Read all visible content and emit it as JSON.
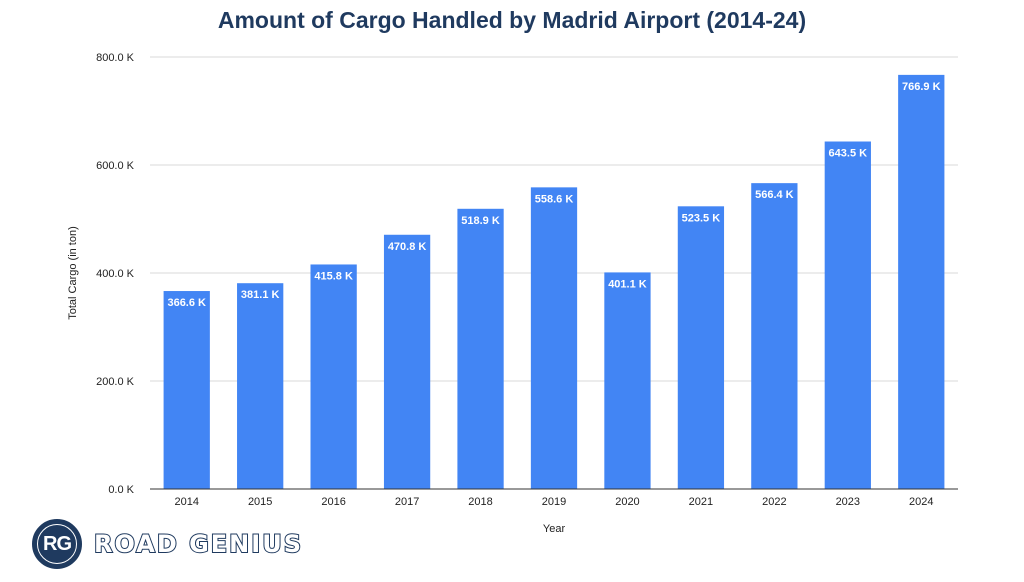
{
  "chart_data": {
    "type": "bar",
    "title": "Amount of Cargo Handled by Madrid Airport (2014-24)",
    "xlabel": "Year",
    "ylabel": "Total Cargo (in ton)",
    "categories": [
      "2014",
      "2015",
      "2016",
      "2017",
      "2018",
      "2019",
      "2020",
      "2021",
      "2022",
      "2023",
      "2024"
    ],
    "values": [
      366.6,
      381.1,
      415.8,
      470.8,
      518.9,
      558.6,
      401.1,
      523.5,
      566.4,
      643.5,
      766.9
    ],
    "value_labels": [
      "366.6 K",
      "381.1 K",
      "415.8 K",
      "470.8 K",
      "518.9 K",
      "558.6 K",
      "401.1 K",
      "523.5 K",
      "566.4 K",
      "643.5 K",
      "766.9 K"
    ],
    "units": "thousand tons",
    "ylim": [
      0,
      800
    ],
    "yticks": [
      0,
      200,
      400,
      600,
      800
    ],
    "ytick_labels": [
      "0.0 K",
      "200.0 K",
      "400.0 K",
      "600.0 K",
      "800.0 K"
    ],
    "grid": true,
    "legend": "none",
    "bar_color": "#4285f4"
  },
  "logo": {
    "mark": "RG",
    "wordmark": "ROAD GENIUS",
    "color": "#1f3a5f"
  }
}
